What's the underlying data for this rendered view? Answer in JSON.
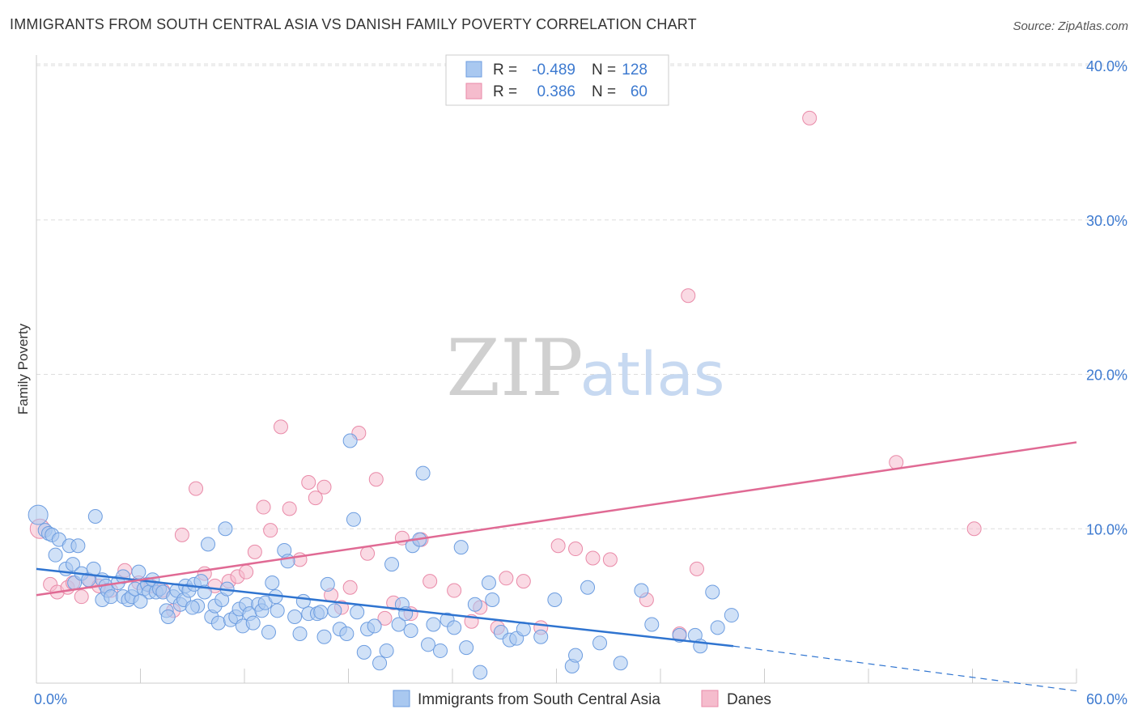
{
  "title": "IMMIGRANTS FROM SOUTH CENTRAL ASIA VS DANISH FAMILY POVERTY CORRELATION CHART",
  "source": "Source: ZipAtlas.com",
  "watermark": {
    "zip": "ZIP",
    "atlas": "atlas"
  },
  "legend_box": {
    "rows": [
      {
        "r_label": "R =",
        "r_value": "-0.489",
        "n_label": "N =",
        "n_value": "128"
      },
      {
        "r_label": "R =",
        "r_value": "0.386",
        "n_label": "N =",
        "n_value": "60"
      }
    ]
  },
  "colors": {
    "blue_fill": "#a9c8f0",
    "blue_stroke": "#6d9de0",
    "blue_line": "#2f74d0",
    "pink_fill": "#f5bccd",
    "pink_stroke": "#e98aa8",
    "pink_line": "#e06a94",
    "axis_text": "#3d7ad0",
    "grid": "#dddddd"
  },
  "chart_data": {
    "type": "scatter",
    "xlabel": "",
    "ylabel": "Family Poverty",
    "xlim": [
      0,
      60
    ],
    "ylim": [
      0,
      40
    ],
    "x_tick_labels": [
      "0.0%",
      "60.0%"
    ],
    "y_ticks": [
      10,
      20,
      30,
      40
    ],
    "y_tick_labels": [
      "10.0%",
      "20.0%",
      "30.0%",
      "40.0%"
    ],
    "grid": true,
    "legend_position": "bottom",
    "series": [
      {
        "name": "Immigrants from South Central Asia",
        "color": "blue",
        "trend": {
          "x": [
            0,
            40.2
          ],
          "y": [
            7.4,
            2.4
          ],
          "dashed_to": [
            60,
            -0.5
          ]
        },
        "points": [
          [
            0.1,
            10.9
          ],
          [
            0.5,
            9.9
          ],
          [
            0.7,
            9.7
          ],
          [
            0.9,
            9.6
          ],
          [
            1.1,
            8.3
          ],
          [
            1.3,
            9.3
          ],
          [
            1.7,
            7.4
          ],
          [
            1.9,
            8.9
          ],
          [
            2.1,
            7.7
          ],
          [
            2.4,
            8.9
          ],
          [
            2.2,
            6.5
          ],
          [
            2.6,
            7.1
          ],
          [
            3.0,
            6.7
          ],
          [
            3.3,
            7.4
          ],
          [
            3.4,
            10.8
          ],
          [
            3.8,
            5.4
          ],
          [
            3.8,
            6.7
          ],
          [
            4.0,
            6.3
          ],
          [
            4.1,
            6.0
          ],
          [
            4.3,
            5.6
          ],
          [
            4.7,
            6.5
          ],
          [
            5.0,
            5.6
          ],
          [
            5.0,
            6.9
          ],
          [
            5.3,
            5.4
          ],
          [
            5.5,
            5.6
          ],
          [
            5.7,
            6.1
          ],
          [
            5.9,
            7.2
          ],
          [
            6.2,
            6.1
          ],
          [
            6.4,
            6.4
          ],
          [
            6.5,
            5.9
          ],
          [
            6.7,
            6.7
          ],
          [
            6.9,
            5.9
          ],
          [
            7.1,
            6.1
          ],
          [
            7.3,
            5.9
          ],
          [
            7.5,
            4.7
          ],
          [
            7.6,
            4.3
          ],
          [
            7.9,
            5.6
          ],
          [
            8.1,
            6.0
          ],
          [
            8.3,
            5.1
          ],
          [
            8.5,
            5.4
          ],
          [
            8.6,
            6.3
          ],
          [
            8.8,
            6.0
          ],
          [
            9.1,
            6.4
          ],
          [
            9.3,
            5.0
          ],
          [
            9.5,
            6.6
          ],
          [
            9.7,
            5.9
          ],
          [
            9.9,
            9.0
          ],
          [
            10.1,
            4.3
          ],
          [
            10.3,
            5.0
          ],
          [
            10.5,
            3.9
          ],
          [
            10.7,
            5.4
          ],
          [
            10.9,
            10.0
          ],
          [
            11.0,
            6.1
          ],
          [
            11.2,
            4.1
          ],
          [
            11.5,
            4.3
          ],
          [
            11.7,
            4.8
          ],
          [
            11.9,
            3.7
          ],
          [
            12.1,
            5.1
          ],
          [
            12.3,
            4.5
          ],
          [
            12.5,
            3.9
          ],
          [
            12.8,
            5.1
          ],
          [
            13.0,
            4.7
          ],
          [
            13.2,
            5.2
          ],
          [
            13.4,
            3.3
          ],
          [
            13.6,
            6.5
          ],
          [
            13.9,
            4.7
          ],
          [
            14.3,
            8.6
          ],
          [
            14.5,
            7.9
          ],
          [
            14.9,
            4.3
          ],
          [
            15.2,
            3.2
          ],
          [
            15.4,
            5.3
          ],
          [
            15.7,
            4.5
          ],
          [
            16.2,
            4.5
          ],
          [
            16.6,
            3.0
          ],
          [
            16.8,
            6.4
          ],
          [
            17.2,
            4.7
          ],
          [
            17.5,
            3.5
          ],
          [
            17.9,
            3.2
          ],
          [
            18.1,
            15.7
          ],
          [
            18.3,
            10.6
          ],
          [
            18.5,
            4.6
          ],
          [
            18.9,
            2.0
          ],
          [
            19.1,
            3.5
          ],
          [
            19.5,
            3.7
          ],
          [
            19.8,
            1.3
          ],
          [
            20.2,
            2.1
          ],
          [
            20.5,
            7.7
          ],
          [
            20.9,
            3.8
          ],
          [
            21.1,
            5.1
          ],
          [
            21.3,
            4.5
          ],
          [
            21.7,
            8.9
          ],
          [
            22.1,
            9.3
          ],
          [
            22.3,
            13.6
          ],
          [
            22.6,
            2.5
          ],
          [
            22.9,
            3.8
          ],
          [
            23.3,
            2.1
          ],
          [
            23.7,
            4.1
          ],
          [
            24.1,
            3.6
          ],
          [
            24.5,
            8.8
          ],
          [
            24.8,
            2.3
          ],
          [
            25.3,
            5.1
          ],
          [
            25.6,
            0.7
          ],
          [
            26.1,
            6.5
          ],
          [
            26.3,
            5.4
          ],
          [
            26.8,
            3.3
          ],
          [
            27.3,
            2.8
          ],
          [
            27.7,
            2.9
          ],
          [
            28.1,
            3.5
          ],
          [
            29.1,
            3.0
          ],
          [
            29.9,
            5.4
          ],
          [
            30.9,
            1.1
          ],
          [
            31.1,
            1.8
          ],
          [
            31.8,
            6.2
          ],
          [
            32.5,
            2.6
          ],
          [
            33.7,
            1.3
          ],
          [
            34.9,
            6.0
          ],
          [
            35.5,
            3.8
          ],
          [
            37.1,
            3.1
          ],
          [
            38.0,
            3.1
          ],
          [
            38.3,
            2.4
          ],
          [
            39.0,
            5.9
          ],
          [
            39.3,
            3.6
          ],
          [
            40.1,
            4.4
          ],
          [
            21.6,
            3.4
          ],
          [
            13.8,
            5.6
          ],
          [
            9.0,
            4.9
          ],
          [
            6.0,
            5.3
          ],
          [
            16.4,
            4.6
          ]
        ]
      },
      {
        "name": "Danes",
        "color": "pink",
        "trend": {
          "x": [
            0,
            60
          ],
          "y": [
            5.7,
            15.6
          ]
        },
        "points": [
          [
            0.2,
            10.0
          ],
          [
            0.8,
            6.4
          ],
          [
            1.2,
            5.9
          ],
          [
            1.8,
            6.2
          ],
          [
            2.1,
            6.5
          ],
          [
            2.6,
            5.6
          ],
          [
            3.1,
            6.6
          ],
          [
            3.6,
            6.3
          ],
          [
            4.3,
            6.0
          ],
          [
            5.1,
            7.3
          ],
          [
            5.9,
            6.5
          ],
          [
            6.6,
            6.3
          ],
          [
            7.3,
            6.0
          ],
          [
            7.9,
            4.7
          ],
          [
            8.4,
            9.6
          ],
          [
            9.2,
            12.6
          ],
          [
            9.7,
            7.1
          ],
          [
            10.3,
            6.3
          ],
          [
            11.1,
            6.6
          ],
          [
            11.6,
            6.9
          ],
          [
            12.1,
            7.2
          ],
          [
            12.6,
            8.5
          ],
          [
            13.1,
            11.4
          ],
          [
            13.5,
            9.9
          ],
          [
            14.1,
            16.6
          ],
          [
            14.6,
            11.3
          ],
          [
            15.2,
            8.0
          ],
          [
            15.7,
            13.0
          ],
          [
            16.1,
            12.0
          ],
          [
            16.6,
            12.7
          ],
          [
            17.0,
            5.7
          ],
          [
            17.6,
            4.9
          ],
          [
            18.1,
            6.2
          ],
          [
            18.6,
            16.2
          ],
          [
            19.1,
            8.4
          ],
          [
            19.6,
            13.2
          ],
          [
            20.1,
            4.2
          ],
          [
            20.6,
            5.2
          ],
          [
            21.1,
            9.4
          ],
          [
            21.6,
            4.5
          ],
          [
            22.2,
            9.3
          ],
          [
            22.7,
            6.6
          ],
          [
            24.1,
            6.0
          ],
          [
            25.1,
            4.0
          ],
          [
            25.6,
            4.9
          ],
          [
            26.6,
            3.6
          ],
          [
            27.1,
            6.8
          ],
          [
            28.1,
            6.6
          ],
          [
            29.1,
            3.6
          ],
          [
            30.1,
            8.9
          ],
          [
            31.1,
            8.7
          ],
          [
            32.1,
            8.1
          ],
          [
            33.1,
            8.0
          ],
          [
            35.2,
            5.4
          ],
          [
            37.1,
            3.2
          ],
          [
            37.6,
            25.1
          ],
          [
            38.1,
            7.4
          ],
          [
            44.6,
            36.6
          ],
          [
            49.6,
            14.3
          ],
          [
            54.1,
            10.0
          ]
        ]
      }
    ]
  },
  "bottom_legend": {
    "items": [
      {
        "label": "Immigrants from South Central Asia"
      },
      {
        "label": "Danes"
      }
    ]
  }
}
